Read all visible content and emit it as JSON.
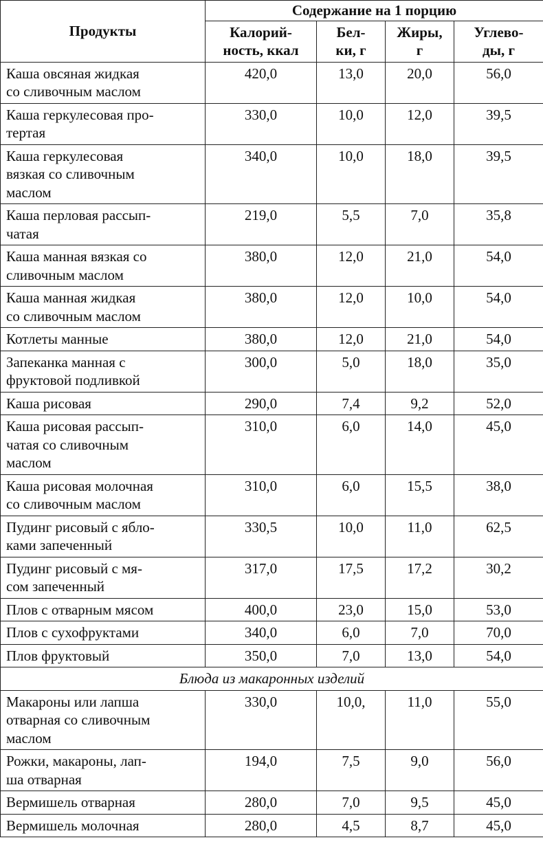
{
  "header": {
    "product": "Продукты",
    "group": "Содержание на 1 порцию",
    "columns": [
      "Калорий-\nность, ккал",
      "Бел-\nки, г",
      "Жиры,\nг",
      "Углево-\nды, г"
    ]
  },
  "sections": [
    {
      "rows": [
        [
          "Каша овсяная жидкая\nсо сливочным маслом",
          "420,0",
          "13,0",
          "20,0",
          "56,0"
        ],
        [
          "Каша геркулесовая про-\nтертая",
          "330,0",
          "10,0",
          "12,0",
          "39,5"
        ],
        [
          "Каша геркулесовая\nвязкая со сливочным\nмаслом",
          "340,0",
          "10,0",
          "18,0",
          "39,5"
        ],
        [
          "Каша перловая рассып-\nчатая",
          "219,0",
          "5,5",
          "7,0",
          "35,8"
        ],
        [
          "Каша манная вязкая со\nсливочным маслом",
          "380,0",
          "12,0",
          "21,0",
          "54,0"
        ],
        [
          "Каша манная жидкая\nсо сливочным маслом",
          "380,0",
          "12,0",
          "10,0",
          "54,0"
        ],
        [
          "Котлеты манные",
          "380,0",
          "12,0",
          "21,0",
          "54,0"
        ],
        [
          "Запеканка манная с\nфруктовой подливкой",
          "300,0",
          "5,0",
          "18,0",
          "35,0"
        ],
        [
          "Каша рисовая",
          "290,0",
          "7,4",
          "9,2",
          "52,0"
        ],
        [
          "Каша рисовая рассып-\nчатая со сливочным\nмаслом",
          "310,0",
          "6,0",
          "14,0",
          "45,0"
        ],
        [
          "Каша рисовая молочная\nсо сливочным маслом",
          "310,0",
          "6,0",
          "15,5",
          "38,0"
        ],
        [
          "Пудинг рисовый с ябло-\nками запеченный",
          "330,5",
          "10,0",
          "11,0",
          "62,5"
        ],
        [
          "Пудинг рисовый с мя-\nсом запеченный",
          "317,0",
          "17,5",
          "17,2",
          "30,2"
        ],
        [
          "Плов с отварным мясом",
          "400,0",
          "23,0",
          "15,0",
          "53,0"
        ],
        [
          "Плов с сухофруктами",
          "340,0",
          "6,0",
          "7,0",
          "70,0"
        ],
        [
          "Плов фруктовый",
          "350,0",
          "7,0",
          "13,0",
          "54,0"
        ]
      ]
    },
    {
      "title": "Блюда из макаронных изделий",
      "rows": [
        [
          "Макароны или лапша\nотварная со сливочным\nмаслом",
          "330,0",
          "10,0,",
          "11,0",
          "55,0"
        ],
        [
          "Рожки, макароны, лап-\nша отварная",
          "194,0",
          "7,5",
          "9,0",
          "56,0"
        ],
        [
          "Вермишель отварная",
          "280,0",
          "7,0",
          "9,5",
          "45,0"
        ],
        [
          "Вермишель молочная",
          "280,0",
          "4,5",
          "8,7",
          "45,0"
        ]
      ]
    }
  ]
}
